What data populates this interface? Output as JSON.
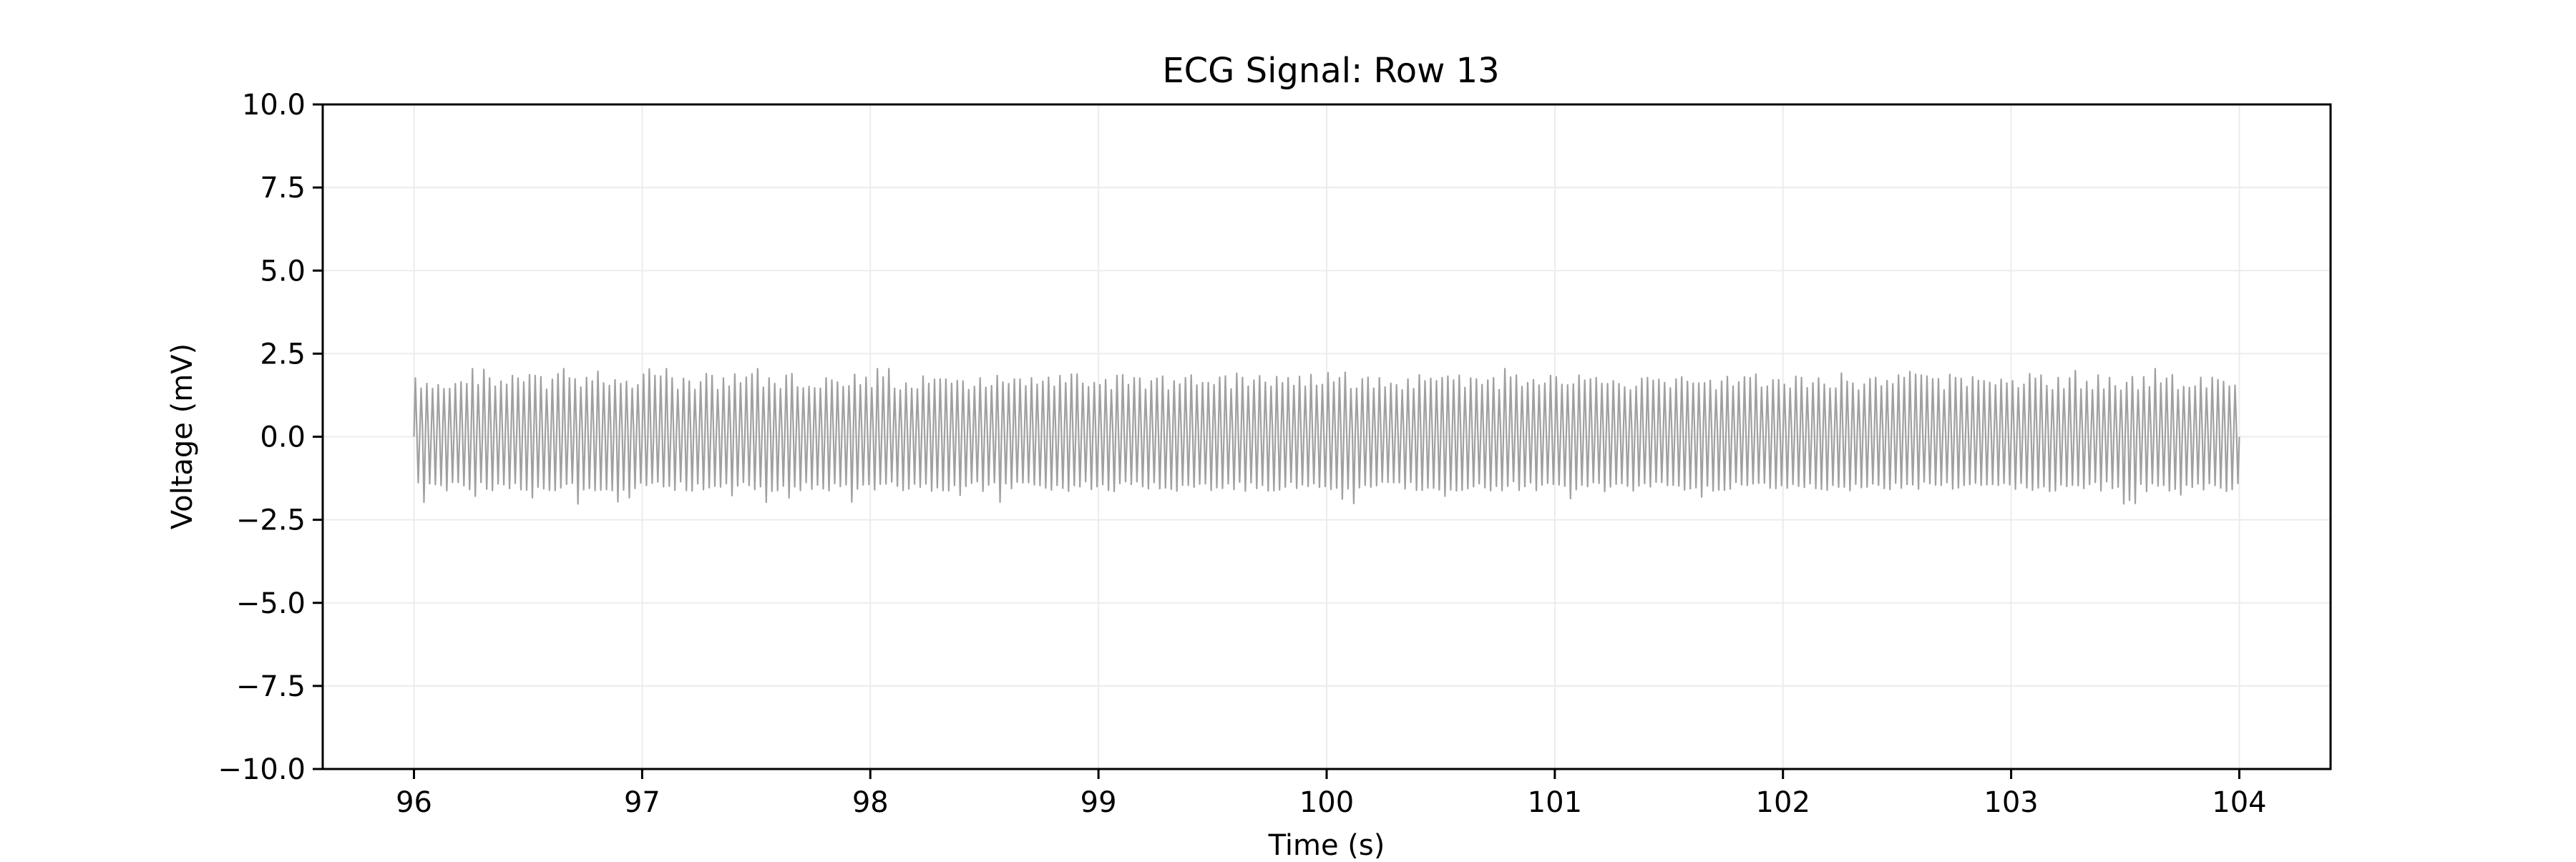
{
  "chart_data": {
    "type": "line",
    "title": "ECG Signal: Row 13",
    "xlabel": "Time (s)",
    "ylabel": "Voltage (mV)",
    "xlim": [
      95.6,
      104.4
    ],
    "ylim": [
      -10.0,
      10.0
    ],
    "x_ticks": [
      96,
      97,
      98,
      99,
      100,
      101,
      102,
      103,
      104
    ],
    "x_tick_labels": [
      "96",
      "97",
      "98",
      "99",
      "100",
      "101",
      "102",
      "103",
      "104"
    ],
    "y_ticks": [
      -10.0,
      -7.5,
      -5.0,
      -2.5,
      0.0,
      2.5,
      5.0,
      7.5,
      10.0
    ],
    "y_tick_labels": [
      "−10.0",
      "−7.5",
      "−5.0",
      "−2.5",
      "0.0",
      "2.5",
      "5.0",
      "7.5",
      "10.0"
    ],
    "grid": true,
    "series": [
      {
        "color": "#a0a0a0",
        "x_start": 96.0,
        "x_end": 104.0,
        "oscillation_frequency_hz": 40,
        "peak_mean": 1.65,
        "peak_range": [
          1.3,
          2.05
        ],
        "trough_mean": -1.5,
        "trough_range": [
          -2.05,
          -1.25
        ],
        "baseline": 0.0
      }
    ]
  }
}
